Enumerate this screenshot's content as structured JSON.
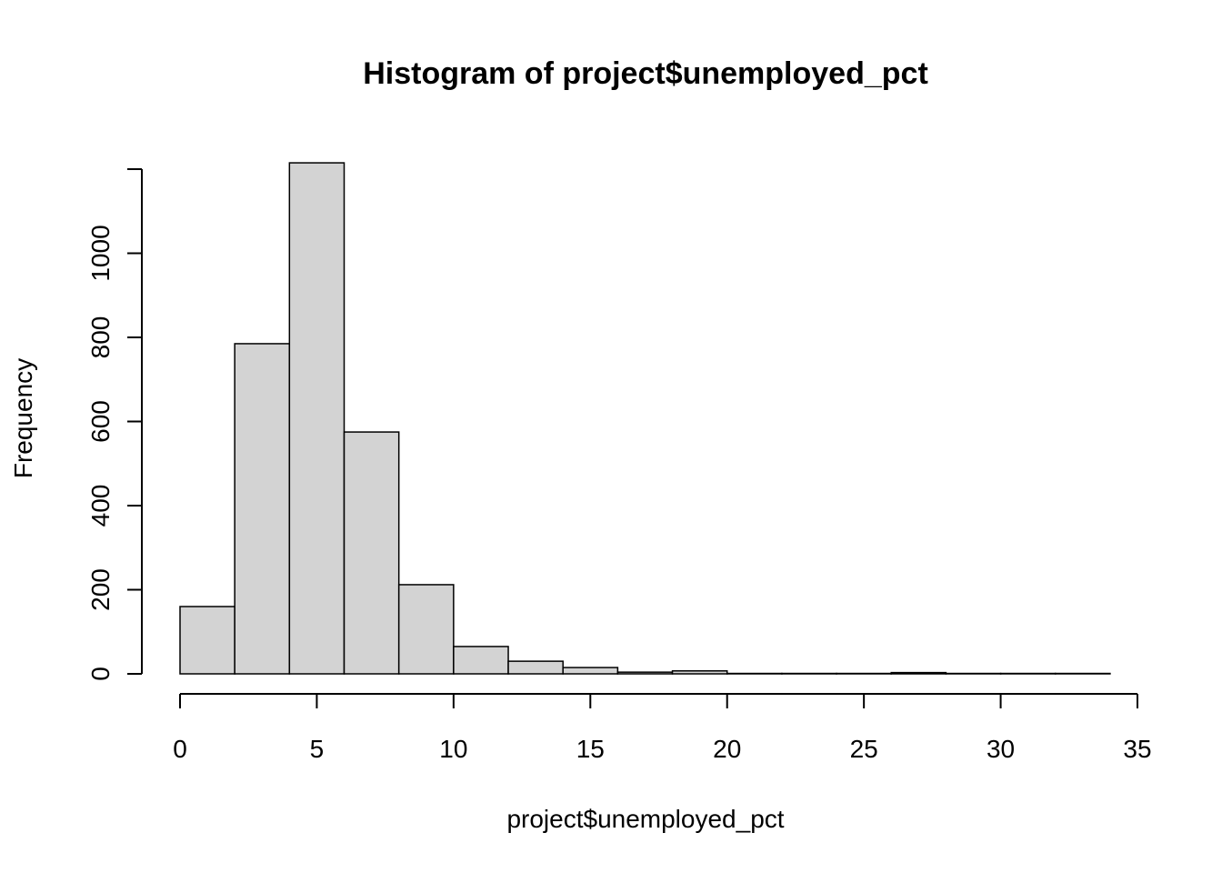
{
  "chart_data": {
    "type": "bar",
    "title": "Histogram of project$unemployed_pct",
    "xlabel": "project$unemployed_pct",
    "ylabel": "Frequency",
    "xlim": [
      0,
      35
    ],
    "ylim": [
      0,
      1200
    ],
    "x_ticks": [
      0,
      5,
      10,
      15,
      20,
      25,
      30,
      35
    ],
    "y_ticks": [
      0,
      200,
      400,
      600,
      800,
      1000
    ],
    "bin_edges": [
      0,
      2,
      4,
      6,
      8,
      10,
      12,
      14,
      16,
      18,
      20,
      22,
      24,
      26,
      28,
      30,
      32,
      34
    ],
    "values": [
      160,
      785,
      1215,
      575,
      212,
      65,
      30,
      15,
      4,
      7,
      1,
      1,
      1,
      3,
      1,
      1,
      1
    ],
    "bar_color": "#d3d3d3",
    "grid": false,
    "legend": "none"
  }
}
